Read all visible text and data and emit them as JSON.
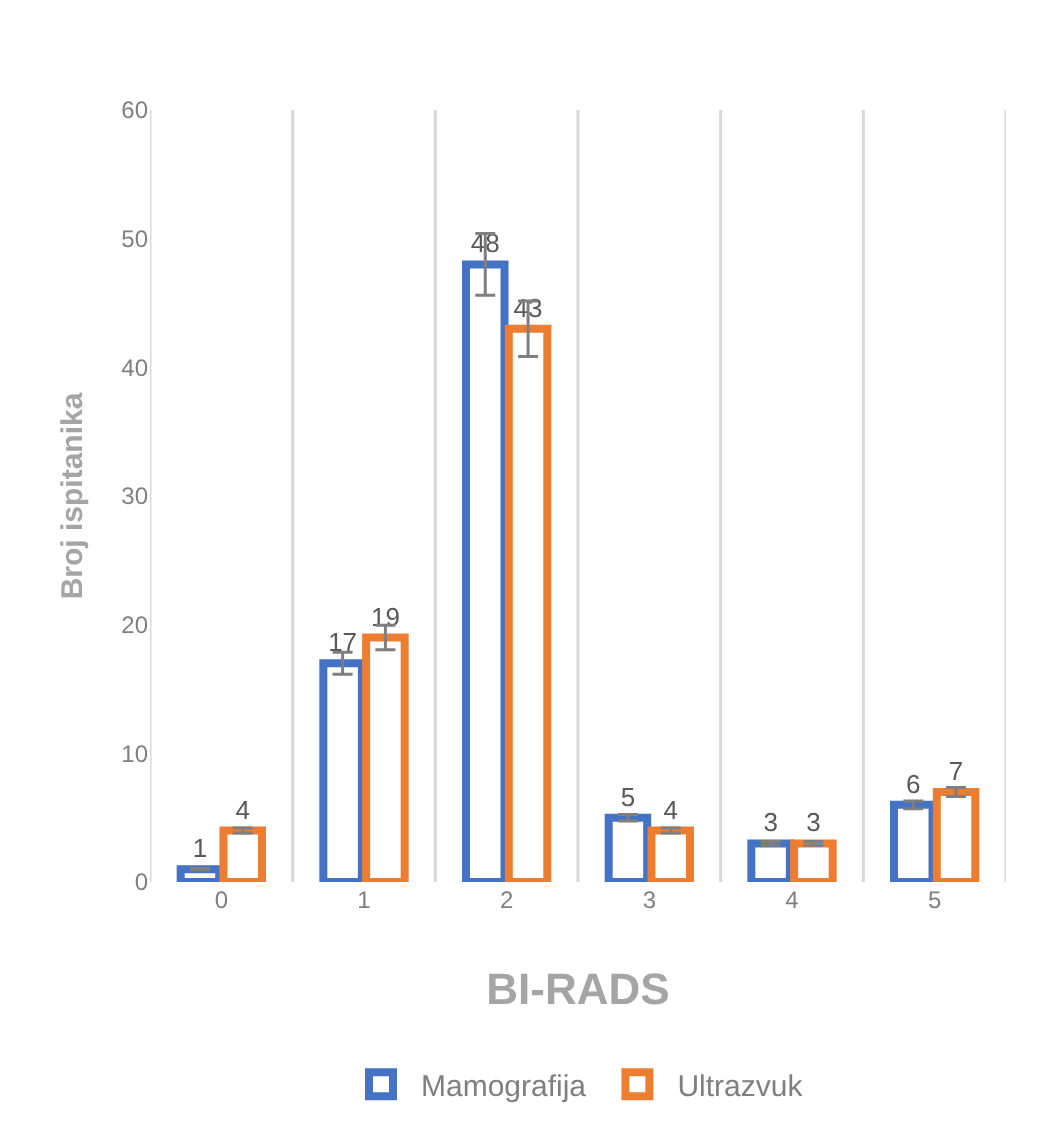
{
  "chart_data": {
    "type": "bar",
    "xlabel": "BI-RADS",
    "ylabel": "Broj ispitanika",
    "categories": [
      "0",
      "1",
      "2",
      "3",
      "4",
      "5"
    ],
    "series": [
      {
        "name": "Mamografija",
        "color": "#4472c4",
        "values": [
          1,
          17,
          48,
          5,
          3,
          6
        ],
        "errors": [
          0.05,
          0.85,
          2.4,
          0.25,
          0.15,
          0.3
        ]
      },
      {
        "name": "Ultrazvuk",
        "color": "#ed7d31",
        "values": [
          4,
          19,
          43,
          4,
          3,
          7
        ],
        "errors": [
          0.2,
          0.95,
          2.15,
          0.2,
          0.15,
          0.35
        ]
      }
    ],
    "ylim": [
      0,
      60
    ],
    "yticks": [
      0,
      10,
      20,
      30,
      40,
      50,
      60
    ],
    "grid": "x",
    "legend": "bottom",
    "data_labels": true
  }
}
